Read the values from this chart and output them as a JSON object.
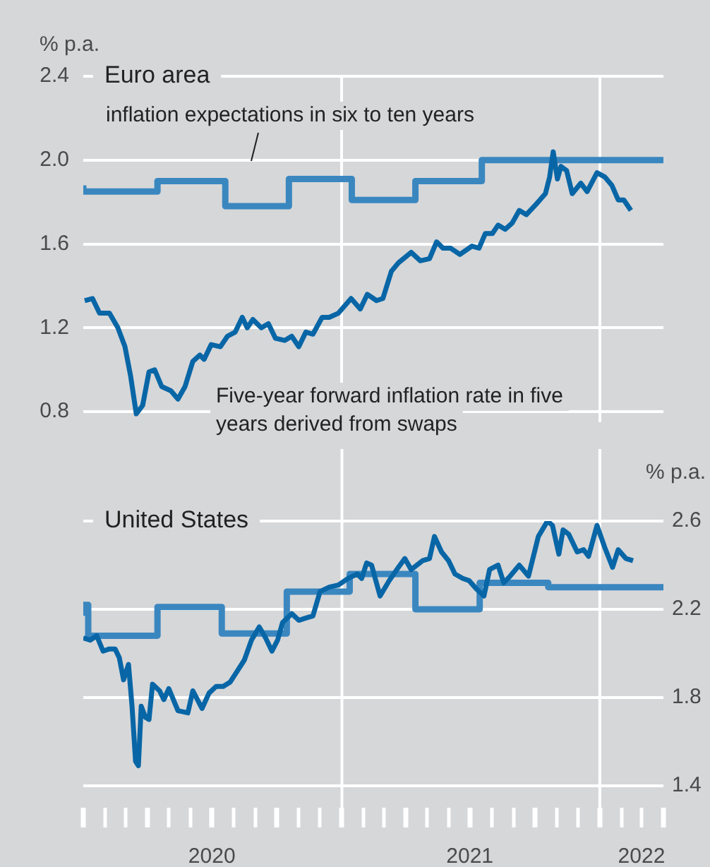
{
  "chart_data": [
    {
      "type": "line",
      "title": "Euro area",
      "ylabel": "% p.a.",
      "xlim": [
        "2020-01-01",
        "2022-04-01"
      ],
      "xticks": [
        {
          "value": "2021-01-01",
          "label": null
        },
        {
          "value": "2022-01-01",
          "label": null
        }
      ],
      "ylim": [
        0.75,
        2.4
      ],
      "yticks": [
        0.8,
        1.2,
        1.6,
        {
          "value": 2,
          "label": "2.0"
        },
        2.4
      ],
      "grid": true,
      "tick_labels": "y",
      "series": [
        {
          "name": "inflation expectations in six to ten years",
          "type": "step",
          "color": "#3a87c0",
          "x": [
            "2020-01-01",
            "2020-04-15",
            "2020-07-20",
            "2020-10-18",
            "2021-01-15",
            "2021-04-15",
            "2021-07-18",
            "2022-01-10",
            "2022-04-01"
          ],
          "values": [
            1.88,
            1.85,
            1.9,
            1.78,
            1.91,
            1.81,
            1.9,
            2.0,
            2.0
          ]
        },
        {
          "name": "Five-year forward inflation rate in five years derived from swaps",
          "type": "line",
          "color": "#0866a6",
          "x": [
            "2020-01-03",
            "2020-01-14",
            "2020-01-24",
            "2020-02-07",
            "2020-02-19",
            "2020-02-29",
            "2020-03-08",
            "2020-03-16",
            "2020-03-25",
            "2020-04-03",
            "2020-04-11",
            "2020-04-21",
            "2020-05-04",
            "2020-05-14",
            "2020-05-24",
            "2020-06-04",
            "2020-06-14",
            "2020-06-20",
            "2020-06-30",
            "2020-07-13",
            "2020-07-23",
            "2020-08-03",
            "2020-08-13",
            "2020-08-20",
            "2020-08-28",
            "2020-09-09",
            "2020-09-19",
            "2020-09-29",
            "2020-10-12",
            "2020-10-22",
            "2020-11-01",
            "2020-11-11",
            "2020-11-21",
            "2020-12-04",
            "2020-12-14",
            "2020-12-27",
            "2021-01-14",
            "2021-01-27",
            "2021-02-06",
            "2021-02-19",
            "2021-02-28",
            "2021-03-12",
            "2021-03-22",
            "2021-04-09",
            "2021-04-22",
            "2021-05-05",
            "2021-05-15",
            "2021-05-24",
            "2021-06-04",
            "2021-06-17",
            "2021-07-04",
            "2021-07-14",
            "2021-07-23",
            "2021-08-02",
            "2021-08-10",
            "2021-08-20",
            "2021-08-30",
            "2021-09-09",
            "2021-09-19",
            "2021-10-03",
            "2021-10-16",
            "2021-10-22",
            "2021-10-27",
            "2021-11-02",
            "2021-11-07",
            "2021-11-15",
            "2021-11-23",
            "2021-12-05",
            "2021-12-14",
            "2021-12-28",
            "2022-01-08",
            "2022-01-18",
            "2022-01-27",
            "2022-02-04",
            "2022-02-14"
          ],
          "values": [
            1.33,
            1.34,
            1.27,
            1.27,
            1.2,
            1.11,
            0.97,
            0.79,
            0.83,
            0.99,
            1.0,
            0.92,
            0.9,
            0.86,
            0.92,
            1.04,
            1.07,
            1.05,
            1.12,
            1.11,
            1.16,
            1.18,
            1.25,
            1.2,
            1.24,
            1.2,
            1.22,
            1.15,
            1.14,
            1.16,
            1.11,
            1.18,
            1.17,
            1.25,
            1.25,
            1.27,
            1.34,
            1.29,
            1.36,
            1.33,
            1.34,
            1.47,
            1.51,
            1.56,
            1.52,
            1.53,
            1.61,
            1.58,
            1.58,
            1.55,
            1.59,
            1.58,
            1.65,
            1.65,
            1.69,
            1.67,
            1.7,
            1.76,
            1.74,
            1.79,
            1.84,
            1.92,
            2.04,
            1.91,
            1.97,
            1.95,
            1.84,
            1.89,
            1.85,
            1.94,
            1.92,
            1.88,
            1.81,
            1.81,
            1.76
          ]
        }
      ]
    },
    {
      "type": "line",
      "title": "United States",
      "y2label": "% p.a.",
      "xlim": [
        "2020-01-01",
        "2022-04-01"
      ],
      "xticks": [
        {
          "value": "2020-01-01",
          "label": null
        },
        {
          "value": "2020-02-01",
          "label": null
        },
        {
          "value": "2020-03-01",
          "label": null
        },
        {
          "value": "2020-04-01",
          "label": null
        },
        {
          "value": "2020-05-01",
          "label": null
        },
        {
          "value": "2020-06-01",
          "label": null
        },
        {
          "value": "2020-07-01",
          "label": "2020"
        },
        {
          "value": "2020-08-01",
          "label": null
        },
        {
          "value": "2020-09-01",
          "label": null
        },
        {
          "value": "2020-10-01",
          "label": null
        },
        {
          "value": "2020-11-01",
          "label": null
        },
        {
          "value": "2020-12-01",
          "label": null
        },
        {
          "value": "2021-01-01",
          "label": null
        },
        {
          "value": "2021-02-01",
          "label": null
        },
        {
          "value": "2021-03-01",
          "label": null
        },
        {
          "value": "2021-04-01",
          "label": null
        },
        {
          "value": "2021-05-01",
          "label": null
        },
        {
          "value": "2021-06-01",
          "label": null
        },
        {
          "value": "2021-07-01",
          "label": "2021"
        },
        {
          "value": "2021-08-01",
          "label": null
        },
        {
          "value": "2021-09-01",
          "label": null
        },
        {
          "value": "2021-10-01",
          "label": null
        },
        {
          "value": "2021-11-01",
          "label": null
        },
        {
          "value": "2021-12-01",
          "label": null
        },
        {
          "value": "2022-01-01",
          "label": null
        },
        {
          "value": "2022-02-01",
          "label": null
        },
        {
          "value": "2022-03-01",
          "label": "2022"
        },
        {
          "value": "2022-04-01",
          "label": null
        }
      ],
      "y2lim": [
        1.3,
        2.6
      ],
      "y2ticks": [
        1.4,
        1.8,
        2.2,
        2.6
      ],
      "grid": "y",
      "ref_lines": [
        {
          "axis": "x",
          "value": "2021-01-01",
          "color": "#ffffff"
        },
        {
          "axis": "x",
          "value": "2022-01-01",
          "color": "#ffffff"
        }
      ],
      "series": [
        {
          "type": "step",
          "axis": "y2",
          "color": "#3a87c0",
          "x": [
            "2020-01-01",
            "2020-01-08",
            "2020-04-15",
            "2020-07-15",
            "2020-10-15",
            "2021-01-12",
            "2021-04-15",
            "2021-07-15",
            "2021-10-20",
            "2022-01-10",
            "2022-04-01"
          ],
          "values": [
            2.17,
            2.22,
            2.08,
            2.21,
            2.09,
            2.28,
            2.36,
            2.2,
            2.32,
            2.3,
            2.3
          ]
        },
        {
          "type": "line",
          "axis": "y2",
          "color": "#0866a6",
          "x": [
            "2020-01-01",
            "2020-01-11",
            "2020-01-20",
            "2020-01-29",
            "2020-02-07",
            "2020-02-15",
            "2020-02-21",
            "2020-02-27",
            "2020-03-05",
            "2020-03-10",
            "2020-03-15",
            "2020-03-19",
            "2020-03-23",
            "2020-03-29",
            "2020-04-03",
            "2020-04-08",
            "2020-04-18",
            "2020-04-24",
            "2020-05-01",
            "2020-05-14",
            "2020-05-28",
            "2020-06-04",
            "2020-06-17",
            "2020-06-27",
            "2020-07-07",
            "2020-07-17",
            "2020-07-27",
            "2020-08-06",
            "2020-08-16",
            "2020-08-26",
            "2020-09-06",
            "2020-09-15",
            "2020-09-24",
            "2020-10-02",
            "2020-10-09",
            "2020-10-22",
            "2020-11-01",
            "2020-11-11",
            "2020-11-21",
            "2020-12-01",
            "2020-12-14",
            "2020-12-27",
            "2021-01-10",
            "2021-01-23",
            "2021-01-29",
            "2021-02-05",
            "2021-02-12",
            "2021-02-24",
            "2021-03-09",
            "2021-03-22",
            "2021-03-31",
            "2021-04-09",
            "2021-04-25",
            "2021-05-05",
            "2021-05-12",
            "2021-05-22",
            "2021-06-01",
            "2021-06-10",
            "2021-06-21",
            "2021-06-30",
            "2021-07-11",
            "2021-07-21",
            "2021-07-29",
            "2021-08-10",
            "2021-08-18",
            "2021-08-27",
            "2021-09-09",
            "2021-09-22",
            "2021-10-06",
            "2021-10-19",
            "2021-10-26",
            "2021-11-04",
            "2021-11-10",
            "2021-11-18",
            "2021-11-30",
            "2021-12-09",
            "2021-12-16",
            "2021-12-28",
            "2022-01-08",
            "2022-01-19",
            "2022-01-27",
            "2022-02-07",
            "2022-02-17"
          ],
          "values": [
            2.07,
            2.06,
            2.08,
            2.01,
            2.02,
            2.02,
            1.98,
            1.88,
            1.95,
            1.76,
            1.51,
            1.49,
            1.76,
            1.71,
            1.7,
            1.86,
            1.83,
            1.79,
            1.84,
            1.74,
            1.73,
            1.83,
            1.75,
            1.82,
            1.85,
            1.85,
            1.87,
            1.92,
            1.97,
            2.06,
            2.12,
            2.07,
            2.01,
            2.06,
            2.14,
            2.18,
            2.15,
            2.16,
            2.17,
            2.28,
            2.3,
            2.31,
            2.34,
            2.36,
            2.34,
            2.41,
            2.4,
            2.26,
            2.33,
            2.39,
            2.43,
            2.38,
            2.42,
            2.43,
            2.53,
            2.46,
            2.42,
            2.36,
            2.34,
            2.33,
            2.29,
            2.26,
            2.38,
            2.4,
            2.32,
            2.35,
            2.4,
            2.35,
            2.53,
            2.6,
            2.58,
            2.45,
            2.56,
            2.54,
            2.46,
            2.47,
            2.44,
            2.58,
            2.48,
            2.39,
            2.47,
            2.43,
            2.42
          ]
        }
      ]
    }
  ]
}
